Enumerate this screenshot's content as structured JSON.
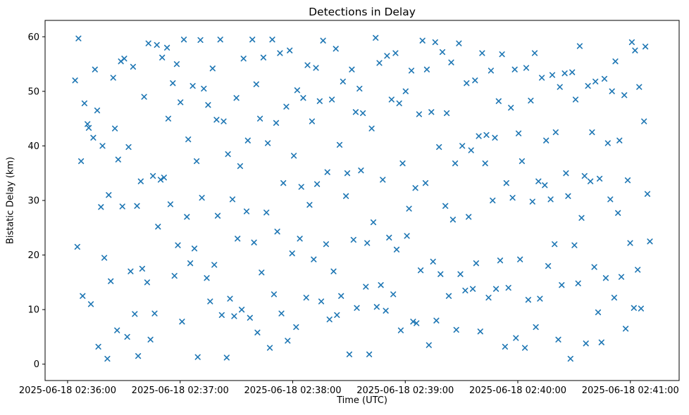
{
  "chart_data": {
    "type": "scatter",
    "title": "Detections in Delay",
    "xlabel": "Time (UTC)",
    "ylabel": "Bistatic Delay (km)",
    "marker": "x",
    "marker_color": "#1f77b4",
    "legend": "none",
    "grid": false,
    "x_tick_base": "2025-06-18 02:36:00",
    "x_ticks": [
      {
        "seconds": 0,
        "label": "2025-06-18 02:36:00"
      },
      {
        "seconds": 60,
        "label": "2025-06-18 02:37:00"
      },
      {
        "seconds": 120,
        "label": "2025-06-18 02:38:00"
      },
      {
        "seconds": 180,
        "label": "2025-06-18 02:39:00"
      },
      {
        "seconds": 240,
        "label": "2025-06-18 02:40:00"
      },
      {
        "seconds": 300,
        "label": "2025-06-18 02:41:00"
      }
    ],
    "y_ticks": [
      0,
      10,
      20,
      30,
      40,
      50,
      60
    ],
    "x_view_seconds": [
      -12,
      326
    ],
    "y_view": [
      -3,
      63
    ],
    "points": [
      [
        4,
        52
      ],
      [
        5.2,
        21.5
      ],
      [
        5.8,
        59.7
      ],
      [
        7.2,
        37.2
      ],
      [
        8,
        12.5
      ],
      [
        9,
        47.8
      ],
      [
        10.6,
        44
      ],
      [
        11.3,
        43.3
      ],
      [
        12.4,
        11
      ],
      [
        13.7,
        41.5
      ],
      [
        14.6,
        54
      ],
      [
        15.8,
        46.5
      ],
      [
        16.4,
        3.2
      ],
      [
        17.8,
        28.8
      ],
      [
        18.6,
        40
      ],
      [
        19.6,
        19.5
      ],
      [
        21.2,
        1
      ],
      [
        21.9,
        31
      ],
      [
        23,
        15.2
      ],
      [
        24.3,
        52.5
      ],
      [
        25.2,
        43.2
      ],
      [
        26.4,
        6.2
      ],
      [
        27,
        37.5
      ],
      [
        28.4,
        55.5
      ],
      [
        29.2,
        28.9
      ],
      [
        30.2,
        56
      ],
      [
        31.8,
        5
      ],
      [
        32.5,
        39.8
      ],
      [
        33.6,
        17
      ],
      [
        34.9,
        54.5
      ],
      [
        35.8,
        9.2
      ],
      [
        37,
        29
      ],
      [
        37.6,
        1.5
      ],
      [
        39,
        33.5
      ],
      [
        39.8,
        17.5
      ],
      [
        40.8,
        49
      ],
      [
        42.4,
        15
      ],
      [
        43.1,
        58.8
      ],
      [
        44.2,
        4.5
      ],
      [
        45.5,
        34.5
      ],
      [
        46.4,
        9.3
      ],
      [
        47.6,
        58.5
      ],
      [
        48.2,
        25.2
      ],
      [
        49.6,
        33.8
      ],
      [
        50.4,
        56.2
      ],
      [
        51.4,
        34.2
      ],
      [
        53,
        58
      ],
      [
        53.7,
        45
      ],
      [
        54.8,
        29.3
      ],
      [
        56.1,
        51.5
      ],
      [
        57,
        16.2
      ],
      [
        58.2,
        55
      ],
      [
        58.8,
        21.8
      ],
      [
        60.2,
        48
      ],
      [
        61,
        7.8
      ],
      [
        62,
        59.5
      ],
      [
        63.6,
        27
      ],
      [
        64.3,
        41.2
      ],
      [
        65.4,
        18.5
      ],
      [
        66.7,
        51
      ],
      [
        67.6,
        21.2
      ],
      [
        68.8,
        37.2
      ],
      [
        69.4,
        1.3
      ],
      [
        70.8,
        59.4
      ],
      [
        71.6,
        30.5
      ],
      [
        72.6,
        50.5
      ],
      [
        74.2,
        15.8
      ],
      [
        74.9,
        47.5
      ],
      [
        76,
        11.5
      ],
      [
        77.3,
        54.2
      ],
      [
        78.2,
        18.2
      ],
      [
        79.4,
        44.8
      ],
      [
        80,
        27.2
      ],
      [
        81.4,
        59.5
      ],
      [
        82.2,
        9
      ],
      [
        83.2,
        44.5
      ],
      [
        84.8,
        1.2
      ],
      [
        85.5,
        38.5
      ],
      [
        86.6,
        12
      ],
      [
        87.9,
        30.2
      ],
      [
        88.8,
        8.8
      ],
      [
        90,
        48.8
      ],
      [
        90.6,
        23
      ],
      [
        92,
        36.3
      ],
      [
        92.8,
        10
      ],
      [
        93.8,
        56
      ],
      [
        95.4,
        28
      ],
      [
        96.1,
        41
      ],
      [
        97.2,
        8.5
      ],
      [
        98.5,
        59.5
      ],
      [
        99.4,
        22.3
      ],
      [
        100.6,
        51.3
      ],
      [
        101.2,
        5.8
      ],
      [
        102.6,
        45
      ],
      [
        103.4,
        16.8
      ],
      [
        104.4,
        56.2
      ],
      [
        106,
        27.8
      ],
      [
        106.7,
        40.5
      ],
      [
        107.8,
        3
      ],
      [
        109.1,
        59.5
      ],
      [
        110,
        12.8
      ],
      [
        111.2,
        44.2
      ],
      [
        111.8,
        24.3
      ],
      [
        113.2,
        57
      ],
      [
        114,
        9.3
      ],
      [
        115,
        33.2
      ],
      [
        116.6,
        47.2
      ],
      [
        117.3,
        4.3
      ],
      [
        118.4,
        57.5
      ],
      [
        119.7,
        20.3
      ],
      [
        120.6,
        38.2
      ],
      [
        121.8,
        6.8
      ],
      [
        122.4,
        50.2
      ],
      [
        123.8,
        23
      ],
      [
        124.6,
        32.5
      ],
      [
        125.6,
        48.8
      ],
      [
        127.2,
        12.2
      ],
      [
        127.9,
        54.8
      ],
      [
        129,
        29.2
      ],
      [
        130.3,
        44.5
      ],
      [
        131.2,
        19.2
      ],
      [
        132.4,
        54.3
      ],
      [
        133,
        33
      ],
      [
        134.4,
        48.2
      ],
      [
        135.2,
        11.5
      ],
      [
        136.2,
        59.3
      ],
      [
        137.8,
        22
      ],
      [
        138.5,
        35.2
      ],
      [
        139.6,
        8.2
      ],
      [
        140.9,
        48.5
      ],
      [
        141.8,
        17
      ],
      [
        143,
        57.8
      ],
      [
        143.6,
        9
      ],
      [
        145,
        40.2
      ],
      [
        145.8,
        12.5
      ],
      [
        146.8,
        51.8
      ],
      [
        148.4,
        30.8
      ],
      [
        149.1,
        35
      ],
      [
        150.2,
        1.8
      ],
      [
        151.5,
        54
      ],
      [
        152.4,
        22.8
      ],
      [
        153.6,
        46.2
      ],
      [
        154.2,
        10.3
      ],
      [
        155.6,
        50.5
      ],
      [
        156.4,
        35.5
      ],
      [
        157.4,
        46
      ],
      [
        159,
        14.2
      ],
      [
        159.7,
        22.2
      ],
      [
        160.8,
        1.8
      ],
      [
        162.1,
        43.2
      ],
      [
        163,
        26
      ],
      [
        164.2,
        59.8
      ],
      [
        164.8,
        10.5
      ],
      [
        166.2,
        55.2
      ],
      [
        167,
        14.5
      ],
      [
        168,
        33.8
      ],
      [
        169.6,
        9.8
      ],
      [
        170.3,
        56.5
      ],
      [
        171.4,
        23.2
      ],
      [
        172.7,
        48.5
      ],
      [
        173.6,
        12.8
      ],
      [
        174.8,
        57
      ],
      [
        175.4,
        21
      ],
      [
        176.8,
        47.8
      ],
      [
        177.6,
        6.2
      ],
      [
        178.6,
        36.8
      ],
      [
        180.2,
        50
      ],
      [
        180.9,
        23.5
      ],
      [
        182,
        28.5
      ],
      [
        183.3,
        53.8
      ],
      [
        184.2,
        7.8
      ],
      [
        185.4,
        32.3
      ],
      [
        186,
        7.5
      ],
      [
        187.4,
        45.8
      ],
      [
        188.2,
        17.2
      ],
      [
        189.2,
        59.3
      ],
      [
        190.8,
        33.2
      ],
      [
        191.5,
        54
      ],
      [
        192.6,
        3.5
      ],
      [
        193.9,
        46.2
      ],
      [
        194.8,
        18.8
      ],
      [
        196,
        59
      ],
      [
        196.6,
        8
      ],
      [
        198,
        39.8
      ],
      [
        198.8,
        16.5
      ],
      [
        199.8,
        57.2
      ],
      [
        201.4,
        29
      ],
      [
        202.1,
        46
      ],
      [
        203.2,
        12.5
      ],
      [
        204.5,
        55.3
      ],
      [
        205.4,
        26.5
      ],
      [
        206.6,
        36.8
      ],
      [
        207.2,
        6.3
      ],
      [
        208.6,
        58.8
      ],
      [
        209.4,
        16.5
      ],
      [
        210.4,
        40
      ],
      [
        212,
        13.5
      ],
      [
        212.7,
        51.5
      ],
      [
        213.8,
        27
      ],
      [
        215.1,
        39.2
      ],
      [
        216,
        13.8
      ],
      [
        217.2,
        52
      ],
      [
        217.8,
        18.5
      ],
      [
        219.2,
        41.8
      ],
      [
        220,
        6
      ],
      [
        221,
        57
      ],
      [
        222.6,
        36.8
      ],
      [
        223.3,
        42
      ],
      [
        224.4,
        12.2
      ],
      [
        225.7,
        53.8
      ],
      [
        226.6,
        30
      ],
      [
        227.8,
        41.5
      ],
      [
        228.4,
        13.8
      ],
      [
        229.8,
        48.2
      ],
      [
        230.6,
        19
      ],
      [
        231.6,
        56.8
      ],
      [
        233.2,
        3.2
      ],
      [
        233.9,
        33.2
      ],
      [
        235,
        14
      ],
      [
        236.3,
        47
      ],
      [
        237.2,
        30.5
      ],
      [
        238.4,
        54
      ],
      [
        239,
        4.8
      ],
      [
        240.4,
        42.3
      ],
      [
        241.2,
        19.2
      ],
      [
        242.2,
        37.2
      ],
      [
        243.8,
        3
      ],
      [
        244.5,
        54.3
      ],
      [
        245.6,
        11.8
      ],
      [
        246.9,
        48.3
      ],
      [
        247.8,
        29.8
      ],
      [
        249,
        57
      ],
      [
        249.6,
        6.8
      ],
      [
        251,
        33.5
      ],
      [
        251.8,
        12
      ],
      [
        252.8,
        52.5
      ],
      [
        254.4,
        32.8
      ],
      [
        255.1,
        41
      ],
      [
        256.2,
        18
      ],
      [
        257.5,
        30.2
      ],
      [
        258.4,
        53
      ],
      [
        259.6,
        22
      ],
      [
        260.2,
        42.5
      ],
      [
        261.6,
        4.5
      ],
      [
        262.4,
        50.8
      ],
      [
        263.4,
        14.5
      ],
      [
        265,
        53.3
      ],
      [
        265.7,
        35
      ],
      [
        266.8,
        30.8
      ],
      [
        268.1,
        1
      ],
      [
        269,
        53.5
      ],
      [
        270.2,
        21.8
      ],
      [
        270.8,
        48.5
      ],
      [
        272.2,
        14.8
      ],
      [
        273,
        58.3
      ],
      [
        274,
        26.8
      ],
      [
        275.6,
        34.5
      ],
      [
        276.3,
        3.8
      ],
      [
        277.4,
        51
      ],
      [
        278.7,
        33.5
      ],
      [
        279.6,
        42.5
      ],
      [
        280.8,
        17.8
      ],
      [
        281.4,
        51.8
      ],
      [
        282.8,
        9.5
      ],
      [
        283.6,
        34
      ],
      [
        284.6,
        4
      ],
      [
        286.2,
        52.3
      ],
      [
        286.9,
        15.8
      ],
      [
        288,
        40.5
      ],
      [
        289.3,
        30.2
      ],
      [
        290.2,
        50
      ],
      [
        291.4,
        12.2
      ],
      [
        292,
        55.5
      ],
      [
        293.4,
        27.7
      ],
      [
        294.2,
        41
      ],
      [
        295.2,
        16
      ],
      [
        296.8,
        49.3
      ],
      [
        297.5,
        6.5
      ],
      [
        298.6,
        33.7
      ],
      [
        299.9,
        22.2
      ],
      [
        300.8,
        59
      ],
      [
        301.9,
        10.3
      ],
      [
        302.5,
        57.5
      ],
      [
        303.9,
        17.3
      ],
      [
        304.7,
        50.8
      ],
      [
        305.7,
        10.2
      ],
      [
        307.3,
        44.5
      ],
      [
        308,
        58.2
      ],
      [
        309.1,
        31.2
      ],
      [
        310.4,
        22.5
      ]
    ]
  }
}
